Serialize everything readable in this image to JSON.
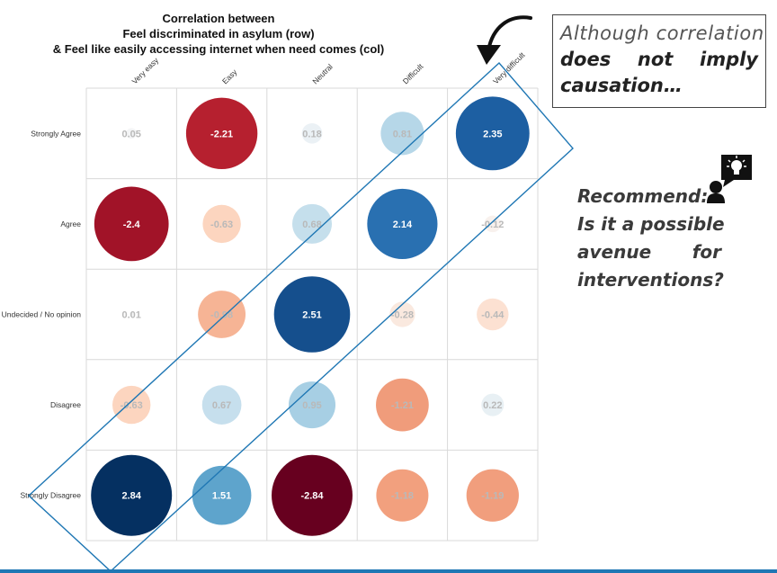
{
  "chart_data": {
    "type": "heatmap",
    "title_lines": [
      "Correlation between",
      "Feel discriminated in asylum (row)",
      "& Feel like easily accessing internet when need comes (col)"
    ],
    "columns": [
      "Very easy",
      "Easy",
      "Neutral",
      "Difficult",
      "Very difficult"
    ],
    "rows": [
      "Strongly Agree",
      "Agree",
      "Undecided / No opinion",
      "Disagree",
      "Strongly Disagree"
    ],
    "values": [
      [
        0.05,
        -2.21,
        0.18,
        0.81,
        2.35
      ],
      [
        -2.4,
        -0.63,
        0.68,
        2.14,
        -0.12
      ],
      [
        0.01,
        -0.98,
        2.51,
        -0.28,
        -0.44
      ],
      [
        -0.63,
        0.67,
        0.95,
        -1.21,
        0.22
      ],
      [
        2.84,
        1.51,
        -2.84,
        -1.18,
        -1.19
      ]
    ],
    "value_range": [
      -2.84,
      2.84
    ],
    "colors": {
      "positive": "#053061",
      "negative": "#67001f",
      "neutral": "#f7f7f7"
    },
    "grid": true
  },
  "annotation": {
    "quote_line1": "Although correlation",
    "quote_line2": "does not imply",
    "quote_line3": "causation…",
    "recommend_line1": "Recommend:",
    "recommend_line2": "Is it a possible",
    "recommend_line3a": "avenue",
    "recommend_line3b": "for",
    "recommend_line4": "interventions?",
    "icon": "person-lightbulb-icon",
    "arrow_icon": "curved-arrow-icon",
    "highlight_color": "#1f77b4"
  }
}
